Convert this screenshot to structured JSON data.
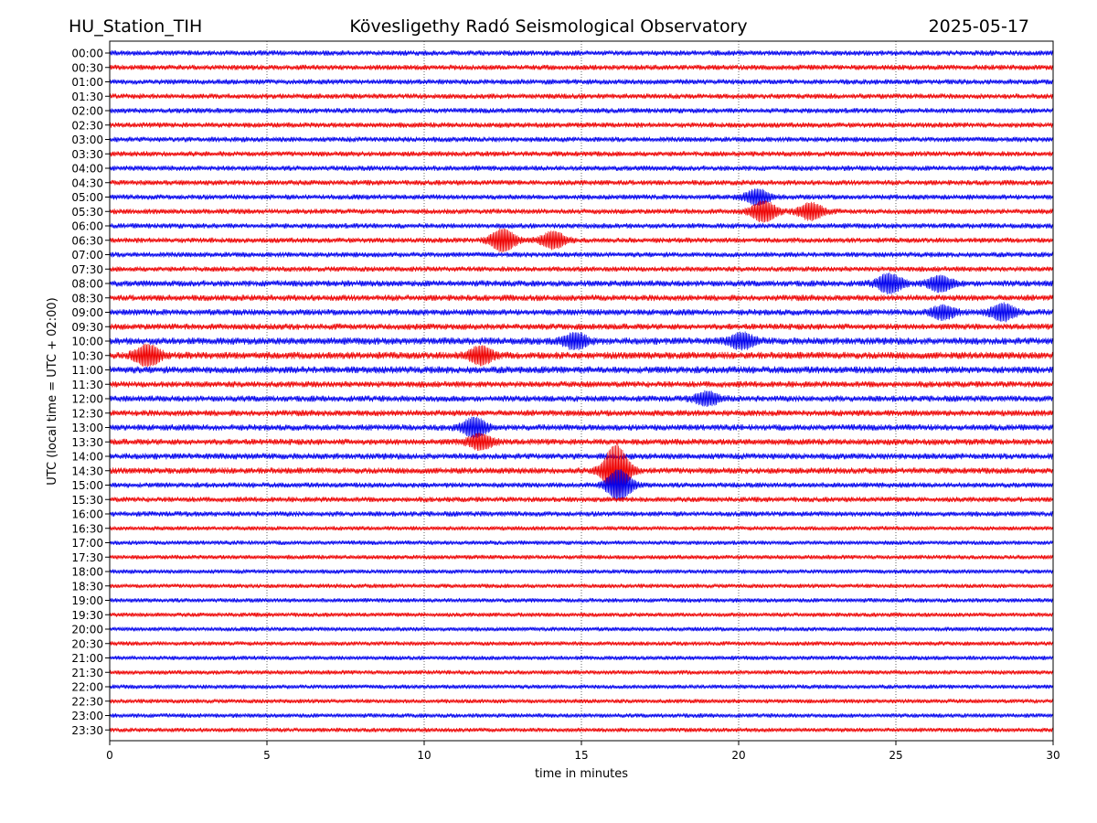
{
  "header": {
    "station": "HU_Station_TIH",
    "observatory": "Kövesligethy Radó Seismological Observatory",
    "date": "2025-05-17"
  },
  "chart_data": {
    "type": "line",
    "chart_kind": "seismic helicorder",
    "xlabel": "time in minutes",
    "ylabel": "UTC (local time = UTC + 02:00)",
    "xlim": [
      0,
      30
    ],
    "x_ticks": [
      "0",
      "5",
      "10",
      "15",
      "20",
      "25",
      "30"
    ],
    "grid": "vertical dotted lines at x ticks",
    "colors": {
      "even_rows": "#0000ee",
      "odd_rows": "#ee0000"
    },
    "rows": [
      "00:00",
      "00:30",
      "01:00",
      "01:30",
      "02:00",
      "02:30",
      "03:00",
      "03:30",
      "04:00",
      "04:30",
      "05:00",
      "05:30",
      "06:00",
      "06:30",
      "07:00",
      "07:30",
      "08:00",
      "08:30",
      "09:00",
      "09:30",
      "10:00",
      "10:30",
      "11:00",
      "11:30",
      "12:00",
      "12:30",
      "13:00",
      "13:30",
      "14:00",
      "14:30",
      "15:00",
      "15:30",
      "16:00",
      "16:30",
      "17:00",
      "17:30",
      "18:00",
      "18:30",
      "19:00",
      "19:30",
      "20:00",
      "20:30",
      "21:00",
      "21:30",
      "22:00",
      "22:30",
      "23:00",
      "23:30"
    ],
    "noise_level": [
      6,
      6,
      6,
      6,
      6,
      6,
      6,
      6,
      6,
      6,
      6,
      6,
      6,
      6,
      6,
      6,
      7,
      7,
      7,
      7,
      8,
      8,
      8,
      7,
      7,
      7,
      7,
      7,
      7,
      7,
      6,
      6,
      6,
      5,
      5,
      5,
      5,
      5,
      5,
      5,
      5,
      5,
      5,
      5,
      5,
      5,
      5,
      5
    ],
    "events": [
      {
        "row": "05:00",
        "minute": 20.6,
        "amplitude": 14
      },
      {
        "row": "05:30",
        "minute": 20.8,
        "amplitude": 20
      },
      {
        "row": "05:30",
        "minute": 22.3,
        "amplitude": 16
      },
      {
        "row": "06:30",
        "minute": 12.5,
        "amplitude": 22
      },
      {
        "row": "06:30",
        "minute": 14.1,
        "amplitude": 16
      },
      {
        "row": "08:00",
        "minute": 24.8,
        "amplitude": 18
      },
      {
        "row": "08:00",
        "minute": 26.4,
        "amplitude": 14
      },
      {
        "row": "09:00",
        "minute": 28.4,
        "amplitude": 16
      },
      {
        "row": "09:00",
        "minute": 26.5,
        "amplitude": 12
      },
      {
        "row": "10:00",
        "minute": 20.1,
        "amplitude": 14
      },
      {
        "row": "10:00",
        "minute": 14.8,
        "amplitude": 14
      },
      {
        "row": "10:30",
        "minute": 1.2,
        "amplitude": 20
      },
      {
        "row": "10:30",
        "minute": 11.8,
        "amplitude": 16
      },
      {
        "row": "12:00",
        "minute": 19.0,
        "amplitude": 12
      },
      {
        "row": "13:00",
        "minute": 11.6,
        "amplitude": 18
      },
      {
        "row": "13:30",
        "minute": 11.8,
        "amplitude": 14
      },
      {
        "row": "14:30",
        "minute": 16.1,
        "amplitude": 52
      },
      {
        "row": "15:00",
        "minute": 16.2,
        "amplitude": 30
      }
    ]
  }
}
